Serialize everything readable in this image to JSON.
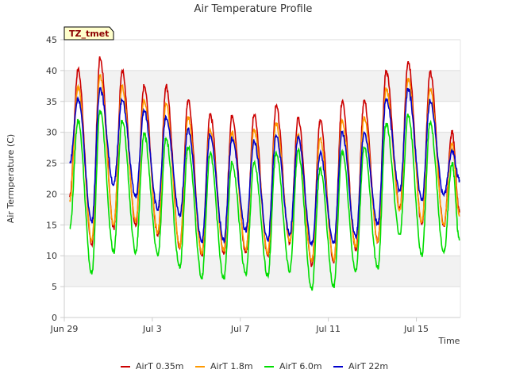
{
  "chart_data": {
    "type": "line",
    "title": "Air Temperature Profile",
    "xlabel": "Time",
    "ylabel": "Air Termperature (C)",
    "badge": "TZ_tmet",
    "ylim": [
      0,
      45
    ],
    "yticks": [
      0,
      5,
      10,
      15,
      20,
      25,
      30,
      35,
      40,
      45
    ],
    "xlim": [
      "2023-06-29",
      "2023-07-17"
    ],
    "xticks": [
      {
        "date": "2023-06-29",
        "label": "Jun 29"
      },
      {
        "date": "2023-07-03",
        "label": "Jul 3"
      },
      {
        "date": "2023-07-07",
        "label": "Jul 7"
      },
      {
        "date": "2023-07-11",
        "label": "Jul 11"
      },
      {
        "date": "2023-07-15",
        "label": "Jul 15"
      }
    ],
    "grid": true,
    "legend_position": "bottom",
    "series": [
      {
        "name": "AirT 0.35m",
        "color": "#cc0000",
        "x": [
          "2023-06-29 06:00",
          "2023-06-29 15:00",
          "2023-06-30 06:00",
          "2023-06-30 15:00",
          "2023-07-01 06:00",
          "2023-07-01 15:00",
          "2023-07-02 06:00",
          "2023-07-02 15:00",
          "2023-07-03 06:00",
          "2023-07-03 15:00",
          "2023-07-04 06:00",
          "2023-07-04 15:00",
          "2023-07-05 06:00",
          "2023-07-05 15:00",
          "2023-07-06 06:00",
          "2023-07-06 15:00",
          "2023-07-07 06:00",
          "2023-07-07 15:00",
          "2023-07-08 06:00",
          "2023-07-08 15:00",
          "2023-07-09 06:00",
          "2023-07-09 15:00",
          "2023-07-10 06:00",
          "2023-07-10 15:00",
          "2023-07-11 06:00",
          "2023-07-11 15:00",
          "2023-07-12 06:00",
          "2023-07-12 15:00",
          "2023-07-13 06:00",
          "2023-07-13 15:00",
          "2023-07-14 06:00",
          "2023-07-14 15:00",
          "2023-07-15 06:00",
          "2023-07-15 15:00",
          "2023-07-16 06:00",
          "2023-07-16 15:00",
          "2023-07-16 23:00"
        ],
        "y": [
          19.5,
          40.2,
          11.8,
          42.0,
          14.5,
          40.0,
          14.8,
          37.5,
          13.2,
          37.5,
          11.2,
          35.2,
          10.0,
          33.0,
          10.2,
          32.8,
          10.5,
          32.8,
          10.0,
          34.2,
          12.0,
          32.2,
          8.5,
          32.0,
          8.8,
          35.0,
          11.0,
          35.2,
          12.2,
          40.0,
          17.5,
          41.5,
          15.0,
          39.8,
          14.8,
          30.0,
          17.0
        ]
      },
      {
        "name": "AirT 1.8m",
        "color": "#ff9900",
        "x": [
          "2023-06-29 06:00",
          "2023-06-29 15:00",
          "2023-06-30 06:00",
          "2023-06-30 15:00",
          "2023-07-01 06:00",
          "2023-07-01 15:00",
          "2023-07-02 06:00",
          "2023-07-02 15:00",
          "2023-07-03 06:00",
          "2023-07-03 15:00",
          "2023-07-04 06:00",
          "2023-07-04 15:00",
          "2023-07-05 06:00",
          "2023-07-05 15:00",
          "2023-07-06 06:00",
          "2023-07-06 15:00",
          "2023-07-07 06:00",
          "2023-07-07 15:00",
          "2023-07-08 06:00",
          "2023-07-08 15:00",
          "2023-07-09 06:00",
          "2023-07-09 15:00",
          "2023-07-10 06:00",
          "2023-07-10 15:00",
          "2023-07-11 06:00",
          "2023-07-11 15:00",
          "2023-07-12 06:00",
          "2023-07-12 15:00",
          "2023-07-13 06:00",
          "2023-07-13 15:00",
          "2023-07-14 06:00",
          "2023-07-14 15:00",
          "2023-07-15 06:00",
          "2023-07-15 15:00",
          "2023-07-16 06:00",
          "2023-07-16 15:00",
          "2023-07-16 23:00"
        ],
        "y": [
          19.0,
          37.5,
          12.5,
          39.2,
          15.0,
          37.5,
          15.5,
          35.2,
          13.8,
          34.5,
          11.5,
          32.5,
          10.5,
          30.5,
          10.8,
          30.0,
          11.0,
          30.5,
          10.5,
          31.5,
          12.5,
          29.5,
          9.0,
          29.0,
          9.2,
          32.0,
          11.5,
          32.5,
          12.5,
          37.0,
          17.5,
          38.8,
          15.5,
          37.0,
          15.0,
          28.0,
          16.5
        ]
      },
      {
        "name": "AirT 6.0m",
        "color": "#00dd00",
        "x": [
          "2023-06-29 06:00",
          "2023-06-29 15:00",
          "2023-06-30 06:00",
          "2023-06-30 15:00",
          "2023-07-01 06:00",
          "2023-07-01 15:00",
          "2023-07-02 06:00",
          "2023-07-02 15:00",
          "2023-07-03 06:00",
          "2023-07-03 15:00",
          "2023-07-04 06:00",
          "2023-07-04 15:00",
          "2023-07-05 06:00",
          "2023-07-05 15:00",
          "2023-07-06 06:00",
          "2023-07-06 15:00",
          "2023-07-07 06:00",
          "2023-07-07 15:00",
          "2023-07-08 06:00",
          "2023-07-08 15:00",
          "2023-07-09 06:00",
          "2023-07-09 15:00",
          "2023-07-10 06:00",
          "2023-07-10 15:00",
          "2023-07-11 06:00",
          "2023-07-11 15:00",
          "2023-07-12 06:00",
          "2023-07-12 15:00",
          "2023-07-13 06:00",
          "2023-07-13 15:00",
          "2023-07-14 06:00",
          "2023-07-14 15:00",
          "2023-07-15 06:00",
          "2023-07-15 15:00",
          "2023-07-16 06:00",
          "2023-07-16 15:00",
          "2023-07-16 23:00"
        ],
        "y": [
          14.5,
          32.0,
          7.0,
          33.5,
          10.5,
          32.0,
          10.5,
          29.8,
          10.0,
          29.0,
          8.0,
          27.5,
          6.5,
          26.5,
          6.2,
          25.0,
          7.0,
          25.0,
          6.8,
          26.8,
          7.5,
          27.0,
          4.5,
          24.0,
          5.0,
          27.0,
          7.5,
          27.5,
          8.0,
          31.5,
          13.5,
          32.8,
          10.0,
          31.5,
          10.5,
          25.0,
          12.5
        ]
      },
      {
        "name": "AirT 22m",
        "color": "#0000cc",
        "x": [
          "2023-06-29 06:00",
          "2023-06-29 15:00",
          "2023-06-30 06:00",
          "2023-06-30 15:00",
          "2023-07-01 06:00",
          "2023-07-01 15:00",
          "2023-07-02 06:00",
          "2023-07-02 15:00",
          "2023-07-03 06:00",
          "2023-07-03 15:00",
          "2023-07-04 06:00",
          "2023-07-04 15:00",
          "2023-07-05 06:00",
          "2023-07-05 15:00",
          "2023-07-06 06:00",
          "2023-07-06 15:00",
          "2023-07-07 06:00",
          "2023-07-07 15:00",
          "2023-07-08 06:00",
          "2023-07-08 15:00",
          "2023-07-09 06:00",
          "2023-07-09 15:00",
          "2023-07-10 06:00",
          "2023-07-10 15:00",
          "2023-07-11 06:00",
          "2023-07-11 15:00",
          "2023-07-12 06:00",
          "2023-07-12 15:00",
          "2023-07-13 06:00",
          "2023-07-13 15:00",
          "2023-07-14 06:00",
          "2023-07-14 15:00",
          "2023-07-15 06:00",
          "2023-07-15 15:00",
          "2023-07-16 06:00",
          "2023-07-16 15:00",
          "2023-07-16 23:00"
        ],
        "y": [
          25.0,
          35.5,
          15.5,
          37.2,
          21.5,
          35.2,
          19.5,
          33.5,
          17.5,
          32.5,
          16.5,
          30.5,
          12.2,
          29.5,
          12.5,
          29.0,
          14.0,
          28.5,
          12.5,
          29.5,
          13.5,
          29.0,
          11.8,
          26.5,
          12.0,
          30.0,
          13.0,
          30.0,
          15.0,
          35.5,
          20.5,
          37.0,
          19.0,
          35.0,
          19.8,
          27.0,
          22.3
        ]
      }
    ]
  }
}
